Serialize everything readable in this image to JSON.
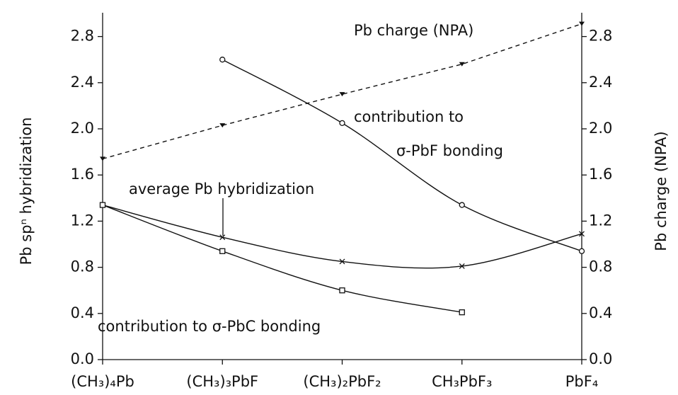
{
  "chart_data": {
    "type": "line",
    "categories": [
      "(CH₃)₄Pb",
      "(CH₃)₃PbF",
      "(CH₃)₂PbF₂",
      "CH₃PbF₃",
      "PbF₄"
    ],
    "ylabel": "Pb spⁿ hybridization",
    "y2label": "Pb charge (NPA)",
    "ylim": [
      0,
      3.0
    ],
    "yticks": [
      {
        "value": 0,
        "label": "0.0"
      },
      {
        "value": 0.4,
        "label": "0.4"
      },
      {
        "value": 0.8,
        "label": "0.8"
      },
      {
        "value": 1.2,
        "label": "1.2"
      },
      {
        "value": 1.6,
        "label": "1.6"
      },
      {
        "value": 2.0,
        "label": "2.0"
      },
      {
        "value": 2.4,
        "label": "2.4"
      },
      {
        "value": 2.8,
        "label": "2.8"
      }
    ],
    "y2lim": [
      0,
      3.0
    ],
    "y2ticks": [
      {
        "value": 0,
        "label": "0.0"
      },
      {
        "value": 0.4,
        "label": "0.4"
      },
      {
        "value": 0.8,
        "label": "0.8"
      },
      {
        "value": 1.2,
        "label": "1.2"
      },
      {
        "value": 1.6,
        "label": "1.6"
      },
      {
        "value": 2.0,
        "label": "2.0"
      },
      {
        "value": 2.4,
        "label": "2.4"
      },
      {
        "value": 2.8,
        "label": "2.8"
      }
    ],
    "series": [
      {
        "color": "#111111",
        "dashed": true,
        "marker": "triangle",
        "axis": "y2",
        "values": [
          1.74,
          2.03,
          2.3,
          2.56,
          2.91
        ]
      },
      {
        "color": "#111111",
        "dashed": false,
        "marker": "circle",
        "values": [
          null,
          2.6,
          2.05,
          1.34,
          0.94
        ]
      },
      {
        "color": "#111111",
        "dashed": false,
        "marker": "cross",
        "values": [
          1.34,
          1.06,
          0.85,
          0.81,
          1.09
        ]
      },
      {
        "color": "#111111",
        "dashed": false,
        "marker": "square",
        "values": [
          1.34,
          0.94,
          0.6,
          0.41,
          null
        ]
      }
    ],
    "annotations": [
      {
        "text": "Pb charge (NPA)"
      },
      {
        "text": "contribution to"
      },
      {
        "text": "σ-PbF bonding"
      },
      {
        "text": "average Pb hybridization"
      },
      {
        "text": "contribution to σ-PbC bonding"
      }
    ]
  }
}
